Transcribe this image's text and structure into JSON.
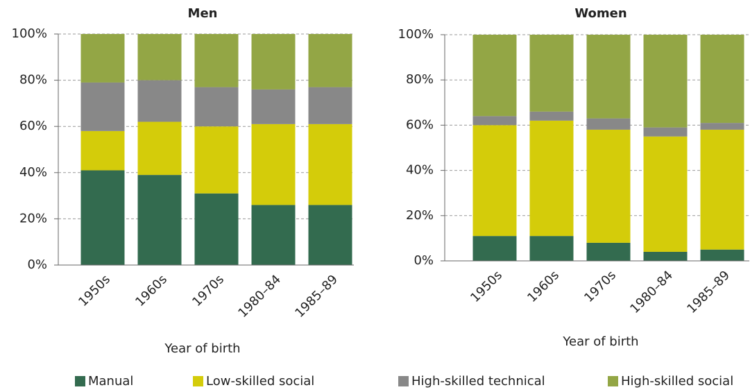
{
  "chart_data": [
    {
      "type": "stacked-bar",
      "title": "Men",
      "x_label": "Year of birth",
      "categories": [
        "1950s",
        "1960s",
        "1970s",
        "1980–84",
        "1985–89"
      ],
      "series": [
        {
          "name": "Manual",
          "color": "#336b4f",
          "values": [
            41,
            39,
            31,
            26,
            26
          ]
        },
        {
          "name": "Low-skilled social",
          "color": "#d4cc0a",
          "values": [
            17,
            23,
            29,
            35,
            35
          ]
        },
        {
          "name": "High-skilled technical",
          "color": "#888888",
          "values": [
            21,
            18,
            17,
            15,
            16
          ]
        },
        {
          "name": "High-skilled social",
          "color": "#93a645",
          "values": [
            21,
            20,
            23,
            24,
            23
          ]
        }
      ],
      "ylim": [
        0,
        100
      ],
      "yticks": [
        {
          "value": 0,
          "label": "0%"
        },
        {
          "value": 20,
          "label": "20%"
        },
        {
          "value": 40,
          "label": "40%"
        },
        {
          "value": 60,
          "label": "60%"
        },
        {
          "value": 80,
          "label": "80%"
        },
        {
          "value": 100,
          "label": "100%"
        }
      ],
      "grid": true
    },
    {
      "type": "stacked-bar",
      "title": "Women",
      "x_label": "Year of birth",
      "categories": [
        "1950s",
        "1960s",
        "1970s",
        "1980–84",
        "1985–89"
      ],
      "series": [
        {
          "name": "Manual",
          "color": "#336b4f",
          "values": [
            11,
            11,
            8,
            4,
            5
          ]
        },
        {
          "name": "Low-skilled social",
          "color": "#d4cc0a",
          "values": [
            49,
            51,
            50,
            51,
            53
          ]
        },
        {
          "name": "High-skilled technical",
          "color": "#888888",
          "values": [
            4,
            4,
            5,
            4,
            3
          ]
        },
        {
          "name": "High-skilled social",
          "color": "#93a645",
          "values": [
            36,
            34,
            37,
            41,
            39
          ]
        }
      ],
      "ylim": [
        0,
        100
      ],
      "yticks": [
        {
          "value": 0,
          "label": "0%"
        },
        {
          "value": 20,
          "label": "20%"
        },
        {
          "value": 40,
          "label": "40%"
        },
        {
          "value": 60,
          "label": "60%"
        },
        {
          "value": 80,
          "label": "80%"
        },
        {
          "value": 100,
          "label": "100%"
        }
      ],
      "grid": true
    }
  ]
}
